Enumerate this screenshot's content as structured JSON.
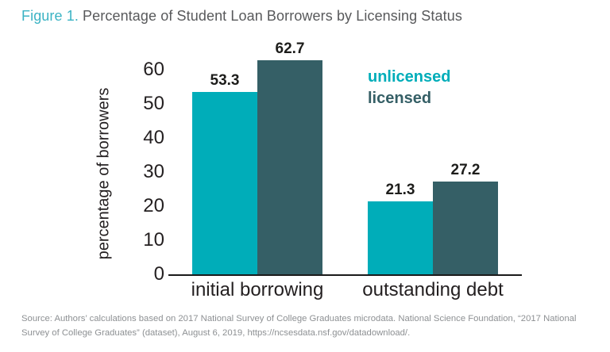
{
  "figure": {
    "label": "Figure 1.",
    "title": "Percentage of Student Loan Borrowers by Licensing Status"
  },
  "chart_data": {
    "type": "bar",
    "categories": [
      "initial borrowing",
      "outstanding debt"
    ],
    "series": [
      {
        "name": "unlicensed",
        "color": "#00adb9",
        "values": [
          53.3,
          21.3
        ]
      },
      {
        "name": "licensed",
        "color": "#355f66",
        "values": [
          62.7,
          27.2
        ]
      }
    ],
    "ylabel": "percentage of borrowers",
    "yticks": [
      0,
      10,
      20,
      30,
      40,
      50,
      60
    ],
    "ylim": [
      0,
      65
    ],
    "grid": false,
    "legend_position": "top-right",
    "value_labels_shown": true
  },
  "source_note": "Source: Authors’ calculations based on 2017 National Survey of College Graduates microdata. National Science Foundation, “2017 National Survey of College Graduates” (dataset), August 6, 2019, https://ncsesdata.nsf.gov/datadownload/.",
  "colors": {
    "accent_teal": "#00adb9",
    "dark_teal": "#355f66",
    "figure_label_teal": "#3bb3c4",
    "title_gray": "#58595b",
    "text_dark": "#231f20",
    "source_gray": "#8d9093"
  }
}
